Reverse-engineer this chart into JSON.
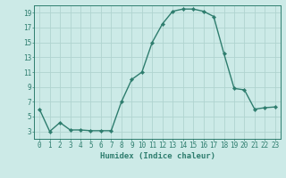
{
  "x": [
    0,
    1,
    2,
    3,
    4,
    5,
    6,
    7,
    8,
    9,
    10,
    11,
    12,
    13,
    14,
    15,
    16,
    17,
    18,
    19,
    20,
    21,
    22,
    23
  ],
  "y": [
    6,
    3,
    4.2,
    3.2,
    3.2,
    3.1,
    3.1,
    3.1,
    7,
    10,
    11,
    15,
    17.5,
    19.2,
    19.5,
    19.5,
    19.2,
    18.5,
    13.5,
    8.8,
    8.6,
    6,
    6.2,
    6.3
  ],
  "line_color": "#2e7d6e",
  "marker": "D",
  "marker_size": 2.2,
  "bg_color": "#cceae7",
  "grid_color": "#b0d4d0",
  "xlabel": "Humidex (Indice chaleur)",
  "xlim": [
    -0.5,
    23.5
  ],
  "ylim": [
    2,
    20
  ],
  "yticks": [
    3,
    5,
    7,
    9,
    11,
    13,
    15,
    17,
    19
  ],
  "xtick_labels": [
    "0",
    "1",
    "2",
    "3",
    "4",
    "5",
    "6",
    "7",
    "8",
    "9",
    "10",
    "11",
    "12",
    "13",
    "14",
    "15",
    "16",
    "17",
    "18",
    "19",
    "20",
    "21",
    "22",
    "23"
  ],
  "xlabel_fontsize": 6.5,
  "tick_fontsize": 5.5,
  "line_width": 1.0
}
